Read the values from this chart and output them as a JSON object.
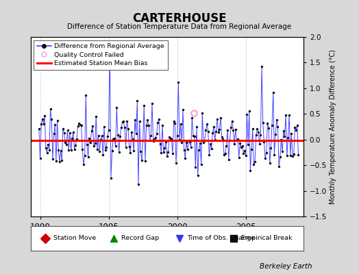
{
  "title": "CARTERHOUSE",
  "subtitle": "Difference of Station Temperature Data from Regional Average",
  "ylabel": "Monthly Temperature Anomaly Difference (°C)",
  "xlabel_ticks": [
    1990,
    1995,
    2000,
    2005
  ],
  "ylim": [
    -1.5,
    2.0
  ],
  "xlim": [
    1989.3,
    2009.2
  ],
  "bias_value": -0.02,
  "background_color": "#d8d8d8",
  "plot_bg_color": "#ffffff",
  "line_color": "#4444ff",
  "bias_color": "#ff0000",
  "berkeley_earth_text": "Berkeley Earth",
  "legend1_entries": [
    {
      "label": "Difference from Regional Average"
    },
    {
      "label": "Quality Control Failed"
    },
    {
      "label": "Estimated Station Mean Bias"
    }
  ],
  "legend2_entries": [
    {
      "label": "Station Move",
      "color": "#cc0000",
      "marker": "D"
    },
    {
      "label": "Record Gap",
      "color": "#008800",
      "marker": "^"
    },
    {
      "label": "Time of Obs. Change",
      "color": "#3333ff",
      "marker": "v"
    },
    {
      "label": "Empirical Break",
      "color": "#111111",
      "marker": "s"
    }
  ],
  "qc_failed_x": 2001.21,
  "qc_failed_y": 0.52,
  "seed": 17
}
